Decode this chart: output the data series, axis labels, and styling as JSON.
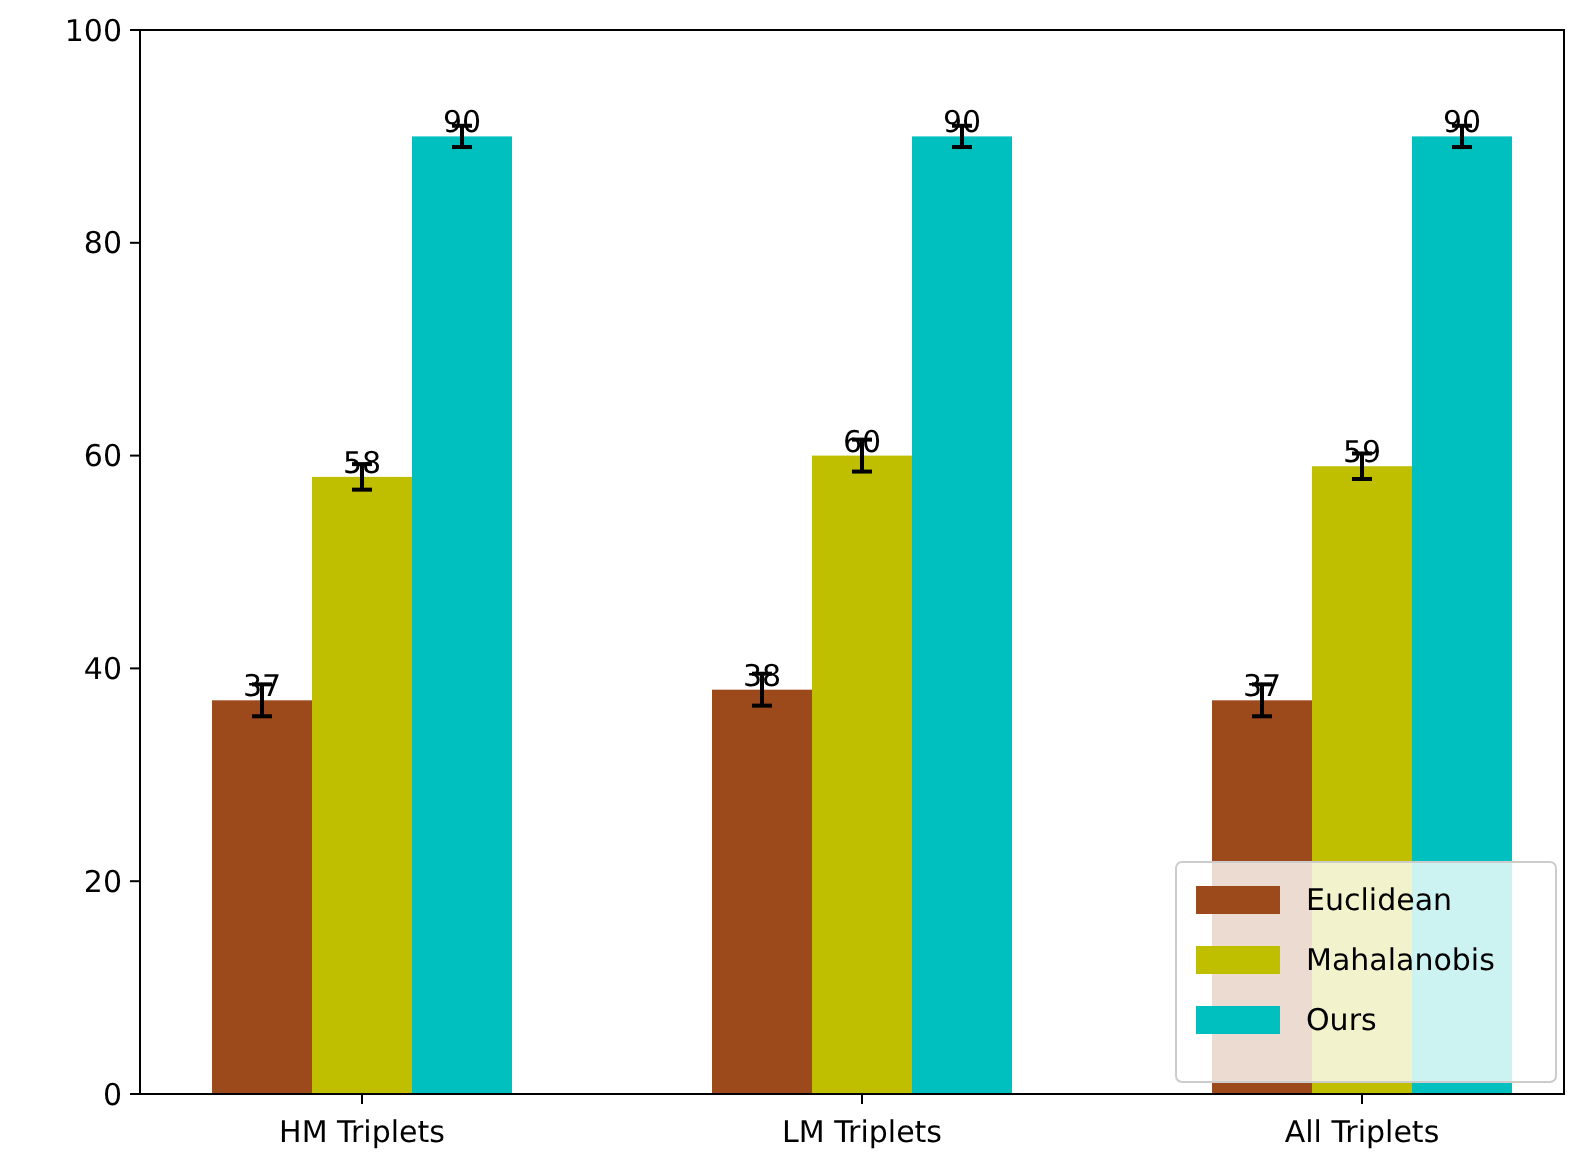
{
  "chart_data": {
    "type": "bar",
    "categories": [
      "HM Triplets",
      "LM Triplets",
      "All Triplets"
    ],
    "series": [
      {
        "name": "Euclidean",
        "color": "#9c4a1c",
        "values": [
          37,
          38,
          37
        ],
        "errors": [
          1.5,
          1.5,
          1.5
        ]
      },
      {
        "name": "Mahalanobis",
        "color": "#bfbf00",
        "values": [
          58,
          60,
          59
        ],
        "errors": [
          1.2,
          1.5,
          1.2
        ]
      },
      {
        "name": "Ours",
        "color": "#00bfbf",
        "values": [
          90,
          90,
          90
        ],
        "errors": [
          1,
          1,
          1
        ]
      }
    ],
    "ylim": [
      0,
      100
    ],
    "yticks": [
      0,
      20,
      40,
      60,
      80,
      100
    ],
    "data_labels": true,
    "legend": "bottom right",
    "grid": false
  }
}
